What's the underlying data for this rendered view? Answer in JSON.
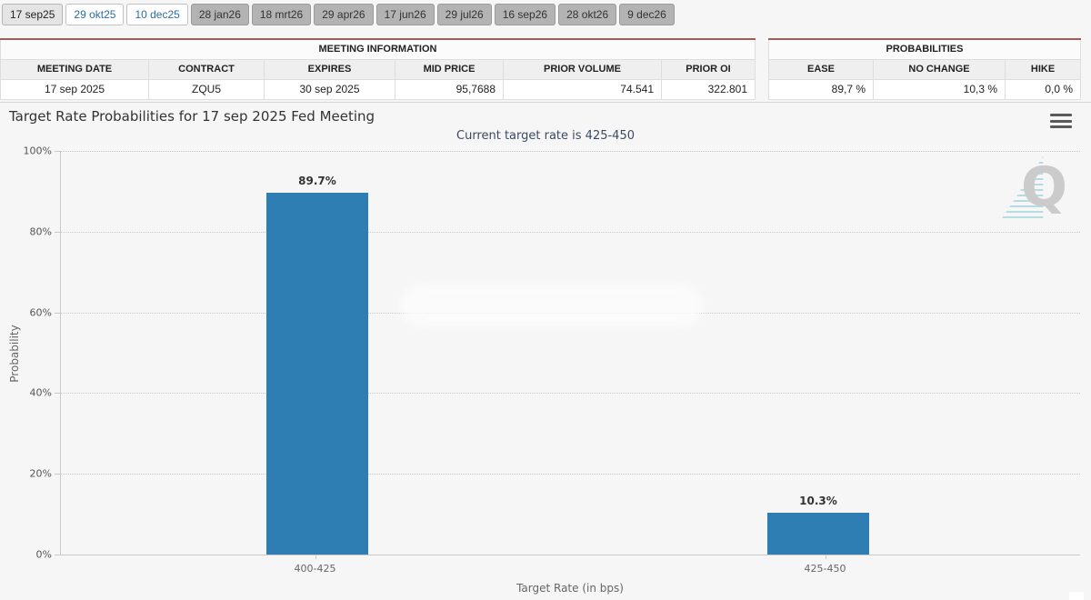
{
  "tabs": [
    {
      "label": "17 sep25",
      "state": "selected"
    },
    {
      "label": "29 okt25",
      "state": "link"
    },
    {
      "label": "10 dec25",
      "state": "link"
    },
    {
      "label": "28 jan26",
      "state": "inactive"
    },
    {
      "label": "18 mrt26",
      "state": "inactive"
    },
    {
      "label": "29 apr26",
      "state": "inactive"
    },
    {
      "label": "17 jun26",
      "state": "inactive"
    },
    {
      "label": "29 jul26",
      "state": "inactive"
    },
    {
      "label": "16 sep26",
      "state": "inactive"
    },
    {
      "label": "28 okt26",
      "state": "inactive"
    },
    {
      "label": "9 dec26",
      "state": "inactive"
    }
  ],
  "meeting_information": {
    "title": "MEETING INFORMATION",
    "columns": [
      "MEETING DATE",
      "CONTRACT",
      "EXPIRES",
      "MID PRICE",
      "PRIOR VOLUME",
      "PRIOR OI"
    ],
    "row": [
      "17 sep 2025",
      "ZQU5",
      "30 sep 2025",
      "95,7688",
      "74.541",
      "322.801"
    ]
  },
  "probabilities": {
    "title": "PROBABILITIES",
    "columns": [
      "EASE",
      "NO CHANGE",
      "HIKE"
    ],
    "row": [
      "89,7 %",
      "10,3 %",
      "0,0 %"
    ]
  },
  "chart": {
    "menu_icon": "hamburger-icon",
    "watermark_letter": "Q",
    "subtitle_color": "#3c4a63",
    "accent_blue": "#2e7eb4",
    "tab_link_color": "#2a6da4",
    "table_top_border_color": "#9c5f5a"
  },
  "chart_data": {
    "type": "bar",
    "title": "Target Rate Probabilities for 17 sep 2025 Fed Meeting",
    "subtitle": "Current target rate is 425-450",
    "categories": [
      "400-425",
      "425-450"
    ],
    "values": [
      89.7,
      10.3
    ],
    "data_labels": [
      "89.7%",
      "10.3%"
    ],
    "xlabel": "Target Rate (in bps)",
    "ylabel": "Probability",
    "ylim": [
      0,
      100
    ],
    "yticks": [
      "0%",
      "20%",
      "40%",
      "60%",
      "80%",
      "100%"
    ],
    "grid": "dotted-horizontal",
    "legend": "none",
    "bar_color": "#2e7eb4"
  }
}
